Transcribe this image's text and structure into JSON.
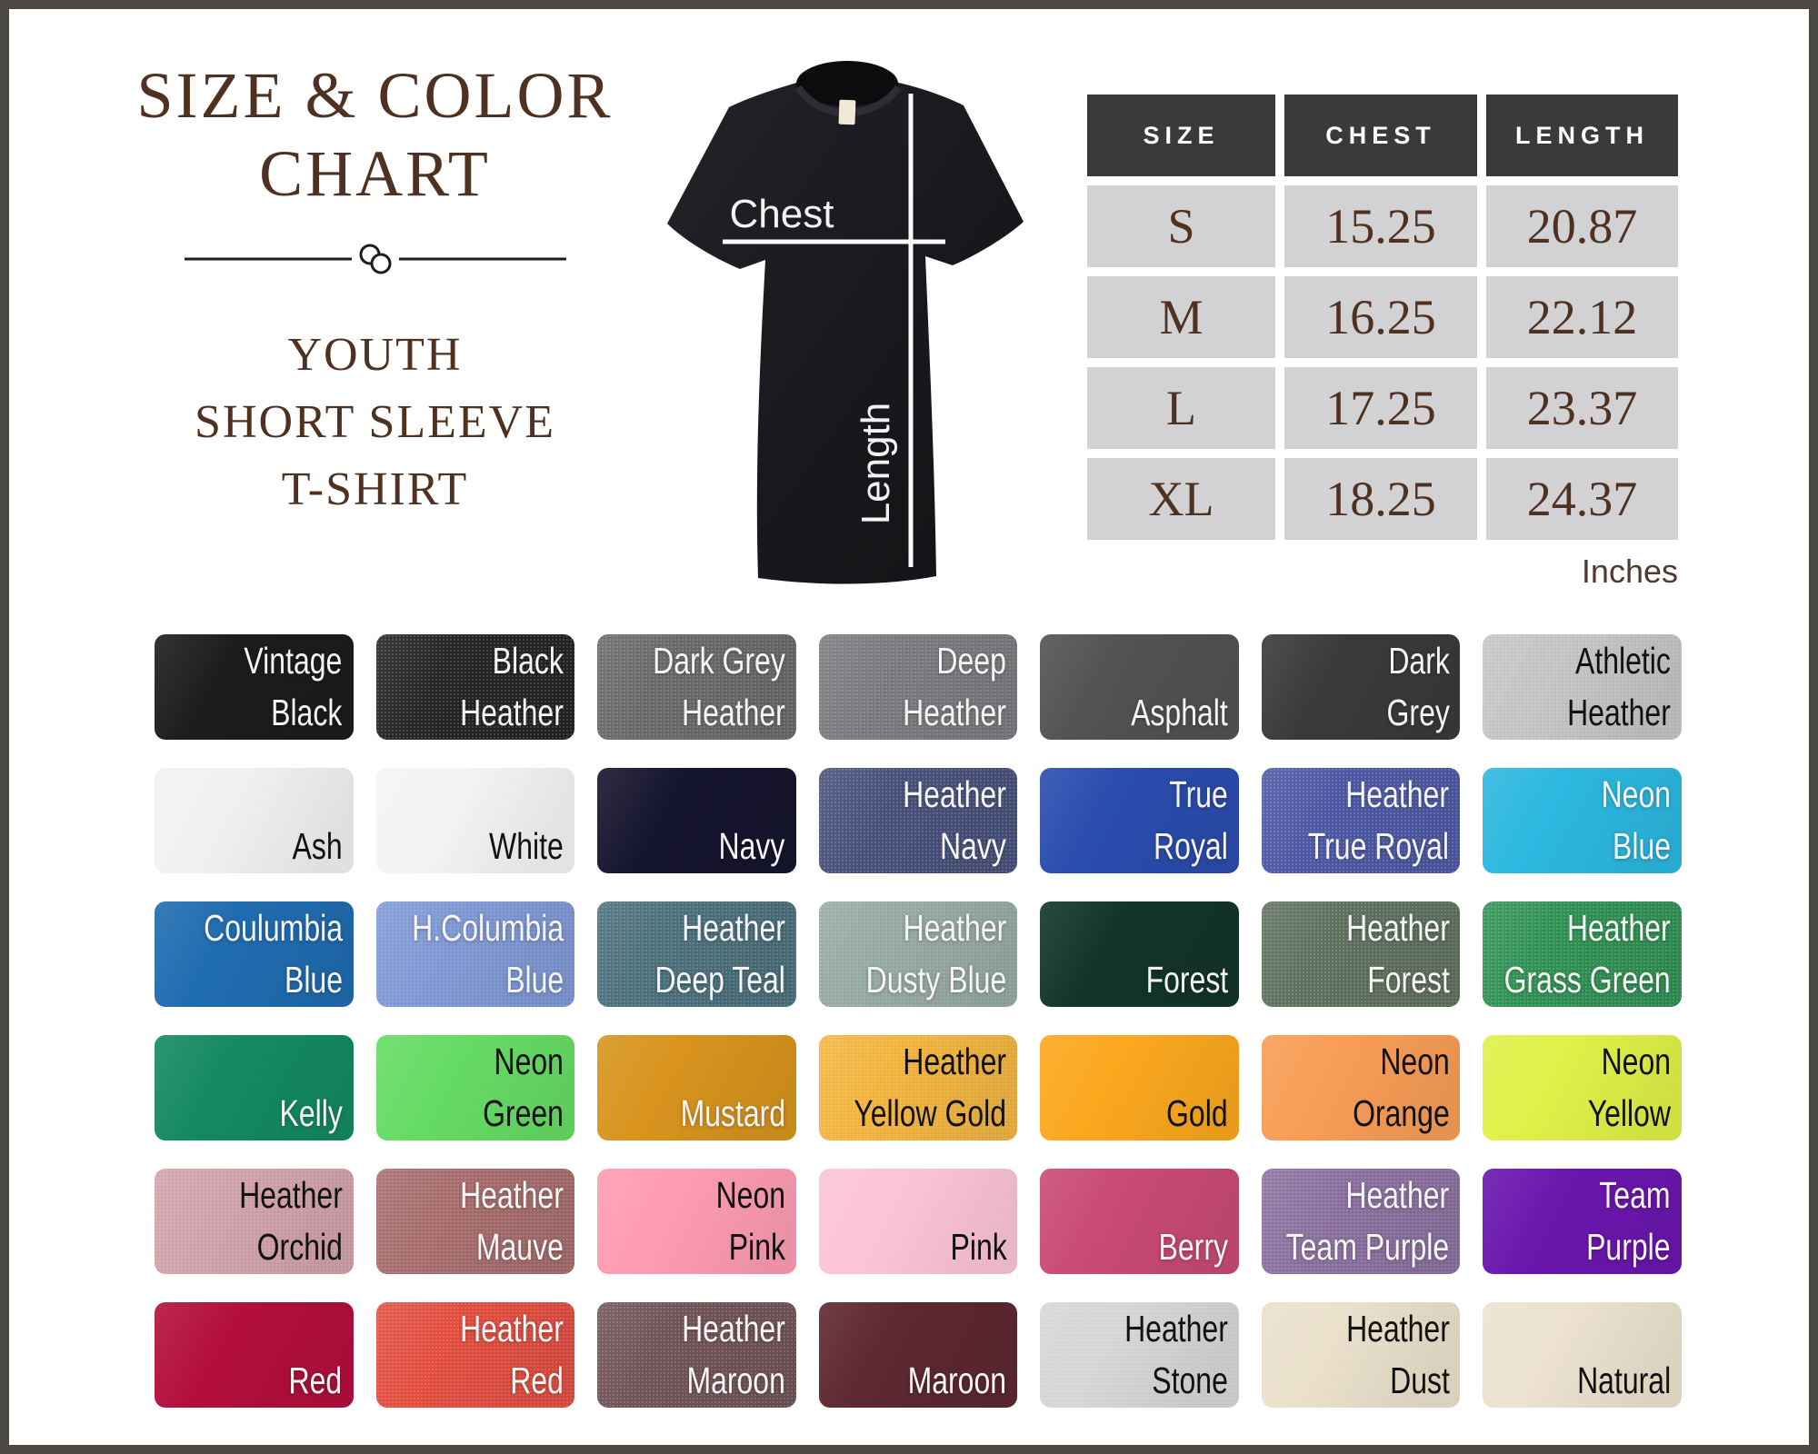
{
  "header": {
    "title_line1": "SIZE & COLOR",
    "title_line2": "CHART",
    "subtitle_lines": [
      "YOUTH",
      "SHORT SLEEVE",
      "T-SHIRT"
    ]
  },
  "shirt_diagram": {
    "chest_label": "Chest",
    "length_label": "Length"
  },
  "size_table": {
    "headers": [
      "SIZE",
      "CHEST",
      "LENGTH"
    ],
    "rows": [
      [
        "S",
        "15.25",
        "20.87"
      ],
      [
        "M",
        "16.25",
        "22.12"
      ],
      [
        "L",
        "17.25",
        "23.37"
      ],
      [
        "XL",
        "18.25",
        "24.37"
      ]
    ],
    "units_label": "Inches"
  },
  "theme": {
    "accent_brown": "#4e3120",
    "table_header_bg": "#3b3a38",
    "table_cell_bg": "#d2d1d3",
    "frame_border": "#4b4742",
    "divider_color": "#1c1c1c",
    "shirt_color": "#1a191c",
    "measure_line_color": "#fafafa"
  },
  "swatches": [
    {
      "label": "Vintage Black",
      "lines": [
        "Vintage",
        "Black"
      ],
      "color": "#1c1c1e",
      "text": "light",
      "heather": false
    },
    {
      "label": "Black Heather",
      "lines": [
        "Black",
        "Heather"
      ],
      "color": "#242426",
      "text": "light",
      "heather": true
    },
    {
      "label": "Dark Grey Heather",
      "lines": [
        "Dark Grey",
        "Heather"
      ],
      "color": "#66686a",
      "text": "light",
      "heather": true
    },
    {
      "label": "Deep Heather",
      "lines": [
        "Deep",
        "Heather"
      ],
      "color": "#77797c",
      "text": "light",
      "heather": true
    },
    {
      "label": "Asphalt",
      "lines": [
        "Asphalt"
      ],
      "color": "#525254",
      "text": "light",
      "heather": false
    },
    {
      "label": "Dark Grey",
      "lines": [
        "Dark",
        "Grey"
      ],
      "color": "#3a3a3c",
      "text": "light",
      "heather": false
    },
    {
      "label": "Athletic Heather",
      "lines": [
        "Athletic",
        "Heather"
      ],
      "color": "#c3c3c5",
      "text": "dark",
      "heather": true
    },
    {
      "label": "Ash",
      "lines": [
        "Ash"
      ],
      "color": "#f1f1f3",
      "text": "dark",
      "heather": false
    },
    {
      "label": "White",
      "lines": [
        "White"
      ],
      "color": "#f4f4f6",
      "text": "dark",
      "heather": false
    },
    {
      "label": "Navy",
      "lines": [
        "Navy"
      ],
      "color": "#16152e",
      "text": "light",
      "heather": false
    },
    {
      "label": "Heather Navy",
      "lines": [
        "Heather",
        "Navy"
      ],
      "color": "#47507a",
      "text": "light",
      "heather": true
    },
    {
      "label": "True Royal",
      "lines": [
        "True",
        "Royal"
      ],
      "color": "#2a4cae",
      "text": "light",
      "heather": false
    },
    {
      "label": "Heather True Royal",
      "lines": [
        "Heather",
        "True Royal"
      ],
      "color": "#4c58a4",
      "text": "light",
      "heather": true
    },
    {
      "label": "Neon Blue",
      "lines": [
        "Neon",
        "Blue"
      ],
      "color": "#2cb8e0",
      "text": "light",
      "heather": false
    },
    {
      "label": "Coulumbia Blue",
      "lines": [
        "Coulumbia",
        "Blue"
      ],
      "color": "#206cb0",
      "text": "light",
      "heather": false
    },
    {
      "label": "H.Columbia Blue",
      "lines": [
        "H.Columbia",
        "Blue"
      ],
      "color": "#7d97d4",
      "text": "light",
      "heather": true
    },
    {
      "label": "Heather Deep Teal",
      "lines": [
        "Heather",
        "Deep Teal"
      ],
      "color": "#4a6f7b",
      "text": "light",
      "heather": true
    },
    {
      "label": "Heather Dusty Blue",
      "lines": [
        "Heather",
        "Dusty Blue"
      ],
      "color": "#96a8a3",
      "text": "light",
      "heather": true
    },
    {
      "label": "Forest",
      "lines": [
        "Forest"
      ],
      "color": "#133528",
      "text": "light",
      "heather": false
    },
    {
      "label": "Heather Forest",
      "lines": [
        "Heather",
        "Forest"
      ],
      "color": "#5e705d",
      "text": "light",
      "heather": true
    },
    {
      "label": "Heather Grass Green",
      "lines": [
        "Heather",
        "Grass Green"
      ],
      "color": "#2f9153",
      "text": "light",
      "heather": true
    },
    {
      "label": "Kelly",
      "lines": [
        "Kelly"
      ],
      "color": "#148a60",
      "text": "light",
      "heather": false
    },
    {
      "label": "Neon Green",
      "lines": [
        "Neon",
        "Green"
      ],
      "color": "#66dc64",
      "text": "dark",
      "heather": false
    },
    {
      "label": "Mustard",
      "lines": [
        "Mustard"
      ],
      "color": "#d8941e",
      "text": "light",
      "heather": false
    },
    {
      "label": "Heather Yellow Gold",
      "lines": [
        "Heather",
        "Yellow Gold"
      ],
      "color": "#f2b33c",
      "text": "dark",
      "heather": true
    },
    {
      "label": "Gold",
      "lines": [
        "Gold"
      ],
      "color": "#fba81e",
      "text": "dark",
      "heather": false
    },
    {
      "label": "Neon Orange",
      "lines": [
        "Neon",
        "Orange"
      ],
      "color": "#f89d56",
      "text": "dark",
      "heather": false
    },
    {
      "label": "Neon Yellow",
      "lines": [
        "Neon",
        "Yellow"
      ],
      "color": "#e0f148",
      "text": "dark",
      "heather": false
    },
    {
      "label": "Heather Orchid",
      "lines": [
        "Heather",
        "Orchid"
      ],
      "color": "#d0a0a8",
      "text": "dark",
      "heather": true
    },
    {
      "label": "Heather Mauve",
      "lines": [
        "Heather",
        "Mauve"
      ],
      "color": "#a66b6b",
      "text": "light",
      "heather": true
    },
    {
      "label": "Neon Pink",
      "lines": [
        "Neon",
        "Pink"
      ],
      "color": "#fe9cb2",
      "text": "dark",
      "heather": false
    },
    {
      "label": "Pink",
      "lines": [
        "Pink"
      ],
      "color": "#fbc5d5",
      "text": "dark",
      "heather": false
    },
    {
      "label": "Berry",
      "lines": [
        "Berry"
      ],
      "color": "#c94a75",
      "text": "light",
      "heather": false
    },
    {
      "label": "Heather Team Purple",
      "lines": [
        "Heather",
        "Team Purple"
      ],
      "color": "#8a6f9e",
      "text": "light",
      "heather": true
    },
    {
      "label": "Team Purple",
      "lines": [
        "Team",
        "Purple"
      ],
      "color": "#6b16ae",
      "text": "light",
      "heather": false
    },
    {
      "label": "Red",
      "lines": [
        "Red"
      ],
      "color": "#b30f3c",
      "text": "light",
      "heather": false
    },
    {
      "label": "Heather Red",
      "lines": [
        "Heather",
        "Red"
      ],
      "color": "#e14c3e",
      "text": "light",
      "heather": true
    },
    {
      "label": "Heather Maroon",
      "lines": [
        "Heather",
        "Maroon"
      ],
      "color": "#705257",
      "text": "light",
      "heather": true
    },
    {
      "label": "Maroon",
      "lines": [
        "Maroon"
      ],
      "color": "#5d2831",
      "text": "light",
      "heather": false
    },
    {
      "label": "Heather Stone",
      "lines": [
        "Heather",
        "Stone"
      ],
      "color": "#d3d6d5",
      "text": "dark",
      "heather": true
    },
    {
      "label": "Heather Dust",
      "lines": [
        "Heather",
        "Dust"
      ],
      "color": "#e9dfc9",
      "text": "dark",
      "heather": true
    },
    {
      "label": "Natural",
      "lines": [
        "Natural"
      ],
      "color": "#ece2cf",
      "text": "dark",
      "heather": false
    }
  ]
}
